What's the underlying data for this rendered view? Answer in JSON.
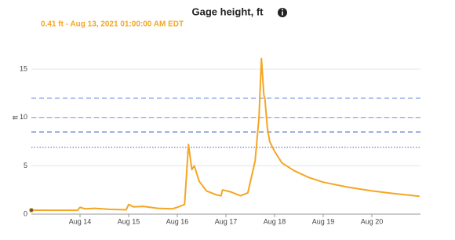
{
  "chart_data": {
    "type": "line",
    "title": "Gage height, ft",
    "subtitle": "0.41 ft - Aug 13, 2021 01:00:00 AM EDT",
    "y_label": "ft",
    "x": [
      13.0,
      13.5,
      13.95,
      14.0,
      14.1,
      14.3,
      14.6,
      14.95,
      15.0,
      15.1,
      15.3,
      15.6,
      15.9,
      16.0,
      16.15,
      16.23,
      16.3,
      16.35,
      16.45,
      16.6,
      16.8,
      16.9,
      16.93,
      17.1,
      17.3,
      17.45,
      17.6,
      17.68,
      17.73,
      17.78,
      17.8,
      17.85,
      17.9,
      18.0,
      18.15,
      18.4,
      18.7,
      19.0,
      19.5,
      20.0,
      20.5,
      20.98
    ],
    "series": [
      {
        "name": "Gage height",
        "color": "#f5a623",
        "values": [
          0.41,
          0.4,
          0.4,
          0.7,
          0.55,
          0.6,
          0.5,
          0.45,
          1.0,
          0.75,
          0.8,
          0.6,
          0.55,
          0.7,
          1.0,
          7.2,
          4.6,
          5.0,
          3.4,
          2.4,
          2.0,
          1.9,
          2.5,
          2.3,
          1.9,
          2.2,
          5.5,
          10.0,
          16.1,
          12.3,
          12.0,
          9.0,
          7.5,
          6.5,
          5.3,
          4.5,
          3.8,
          3.3,
          2.8,
          2.4,
          2.1,
          1.85
        ]
      }
    ],
    "reference_lines": [
      {
        "value": 12.0,
        "color": "#8fa8e8",
        "style": "dashed"
      },
      {
        "value": 10.0,
        "color": "#8fa8e8",
        "style": "dashed"
      },
      {
        "value": 8.5,
        "color": "#5570c8",
        "style": "dashed"
      },
      {
        "value": 6.9,
        "color": "#5570c8",
        "style": "dotted"
      }
    ],
    "xlim": [
      13.0,
      21.0
    ],
    "xticks": [
      {
        "value": 14,
        "label": "Aug 14"
      },
      {
        "value": 15,
        "label": "Aug 15"
      },
      {
        "value": 16,
        "label": "Aug 16"
      },
      {
        "value": 17,
        "label": "Aug 17"
      },
      {
        "value": 18,
        "label": "Aug 18"
      },
      {
        "value": 19,
        "label": "Aug 19"
      },
      {
        "value": 20,
        "label": "Aug 20"
      }
    ],
    "ylim": [
      0,
      18.5
    ],
    "yticks": [
      0,
      5,
      10,
      15
    ],
    "grid": true
  }
}
